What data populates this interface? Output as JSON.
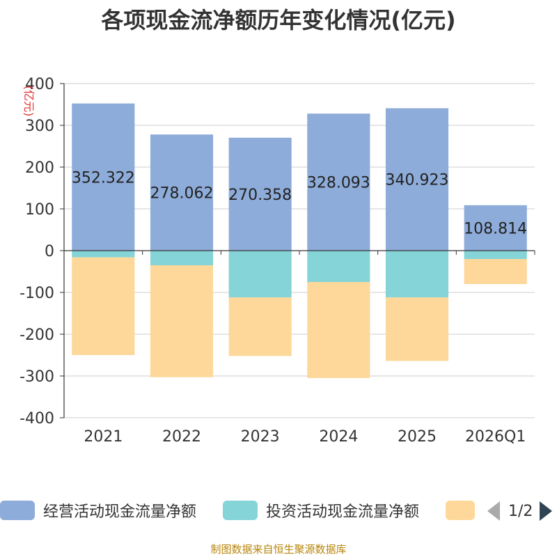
{
  "chart_data": {
    "type": "bar",
    "stacked": true,
    "title": "各项现金流净额历年变化情况(亿元)",
    "ylabel": "(亿元)",
    "ylim": [
      -400,
      400
    ],
    "yticks": [
      400,
      300,
      200,
      100,
      0,
      -100,
      -200,
      -300,
      -400
    ],
    "categories": [
      "2021",
      "2022",
      "2023",
      "2024",
      "2025",
      "2026Q1"
    ],
    "series": [
      {
        "name": "经营活动现金流量净额",
        "color": "#8eacda",
        "values": [
          352.322,
          278.062,
          270.358,
          328.093,
          340.923,
          108.814
        ],
        "labels": [
          "352.322",
          "278.062",
          "270.358",
          "328.093",
          "340.923",
          "108.814"
        ]
      },
      {
        "name": "投资活动现金流量净额",
        "color": "#85d4d7",
        "values": [
          -16,
          -35,
          -112,
          -75,
          -112,
          -20
        ]
      },
      {
        "name": "",
        "color": "#fdd89a",
        "values": [
          -234,
          -268,
          -140,
          -230,
          -152,
          -60
        ]
      }
    ]
  },
  "legend": {
    "page_indicator": "1/2"
  },
  "footer": {
    "source": "制图数据来自恒生聚源数据库"
  }
}
